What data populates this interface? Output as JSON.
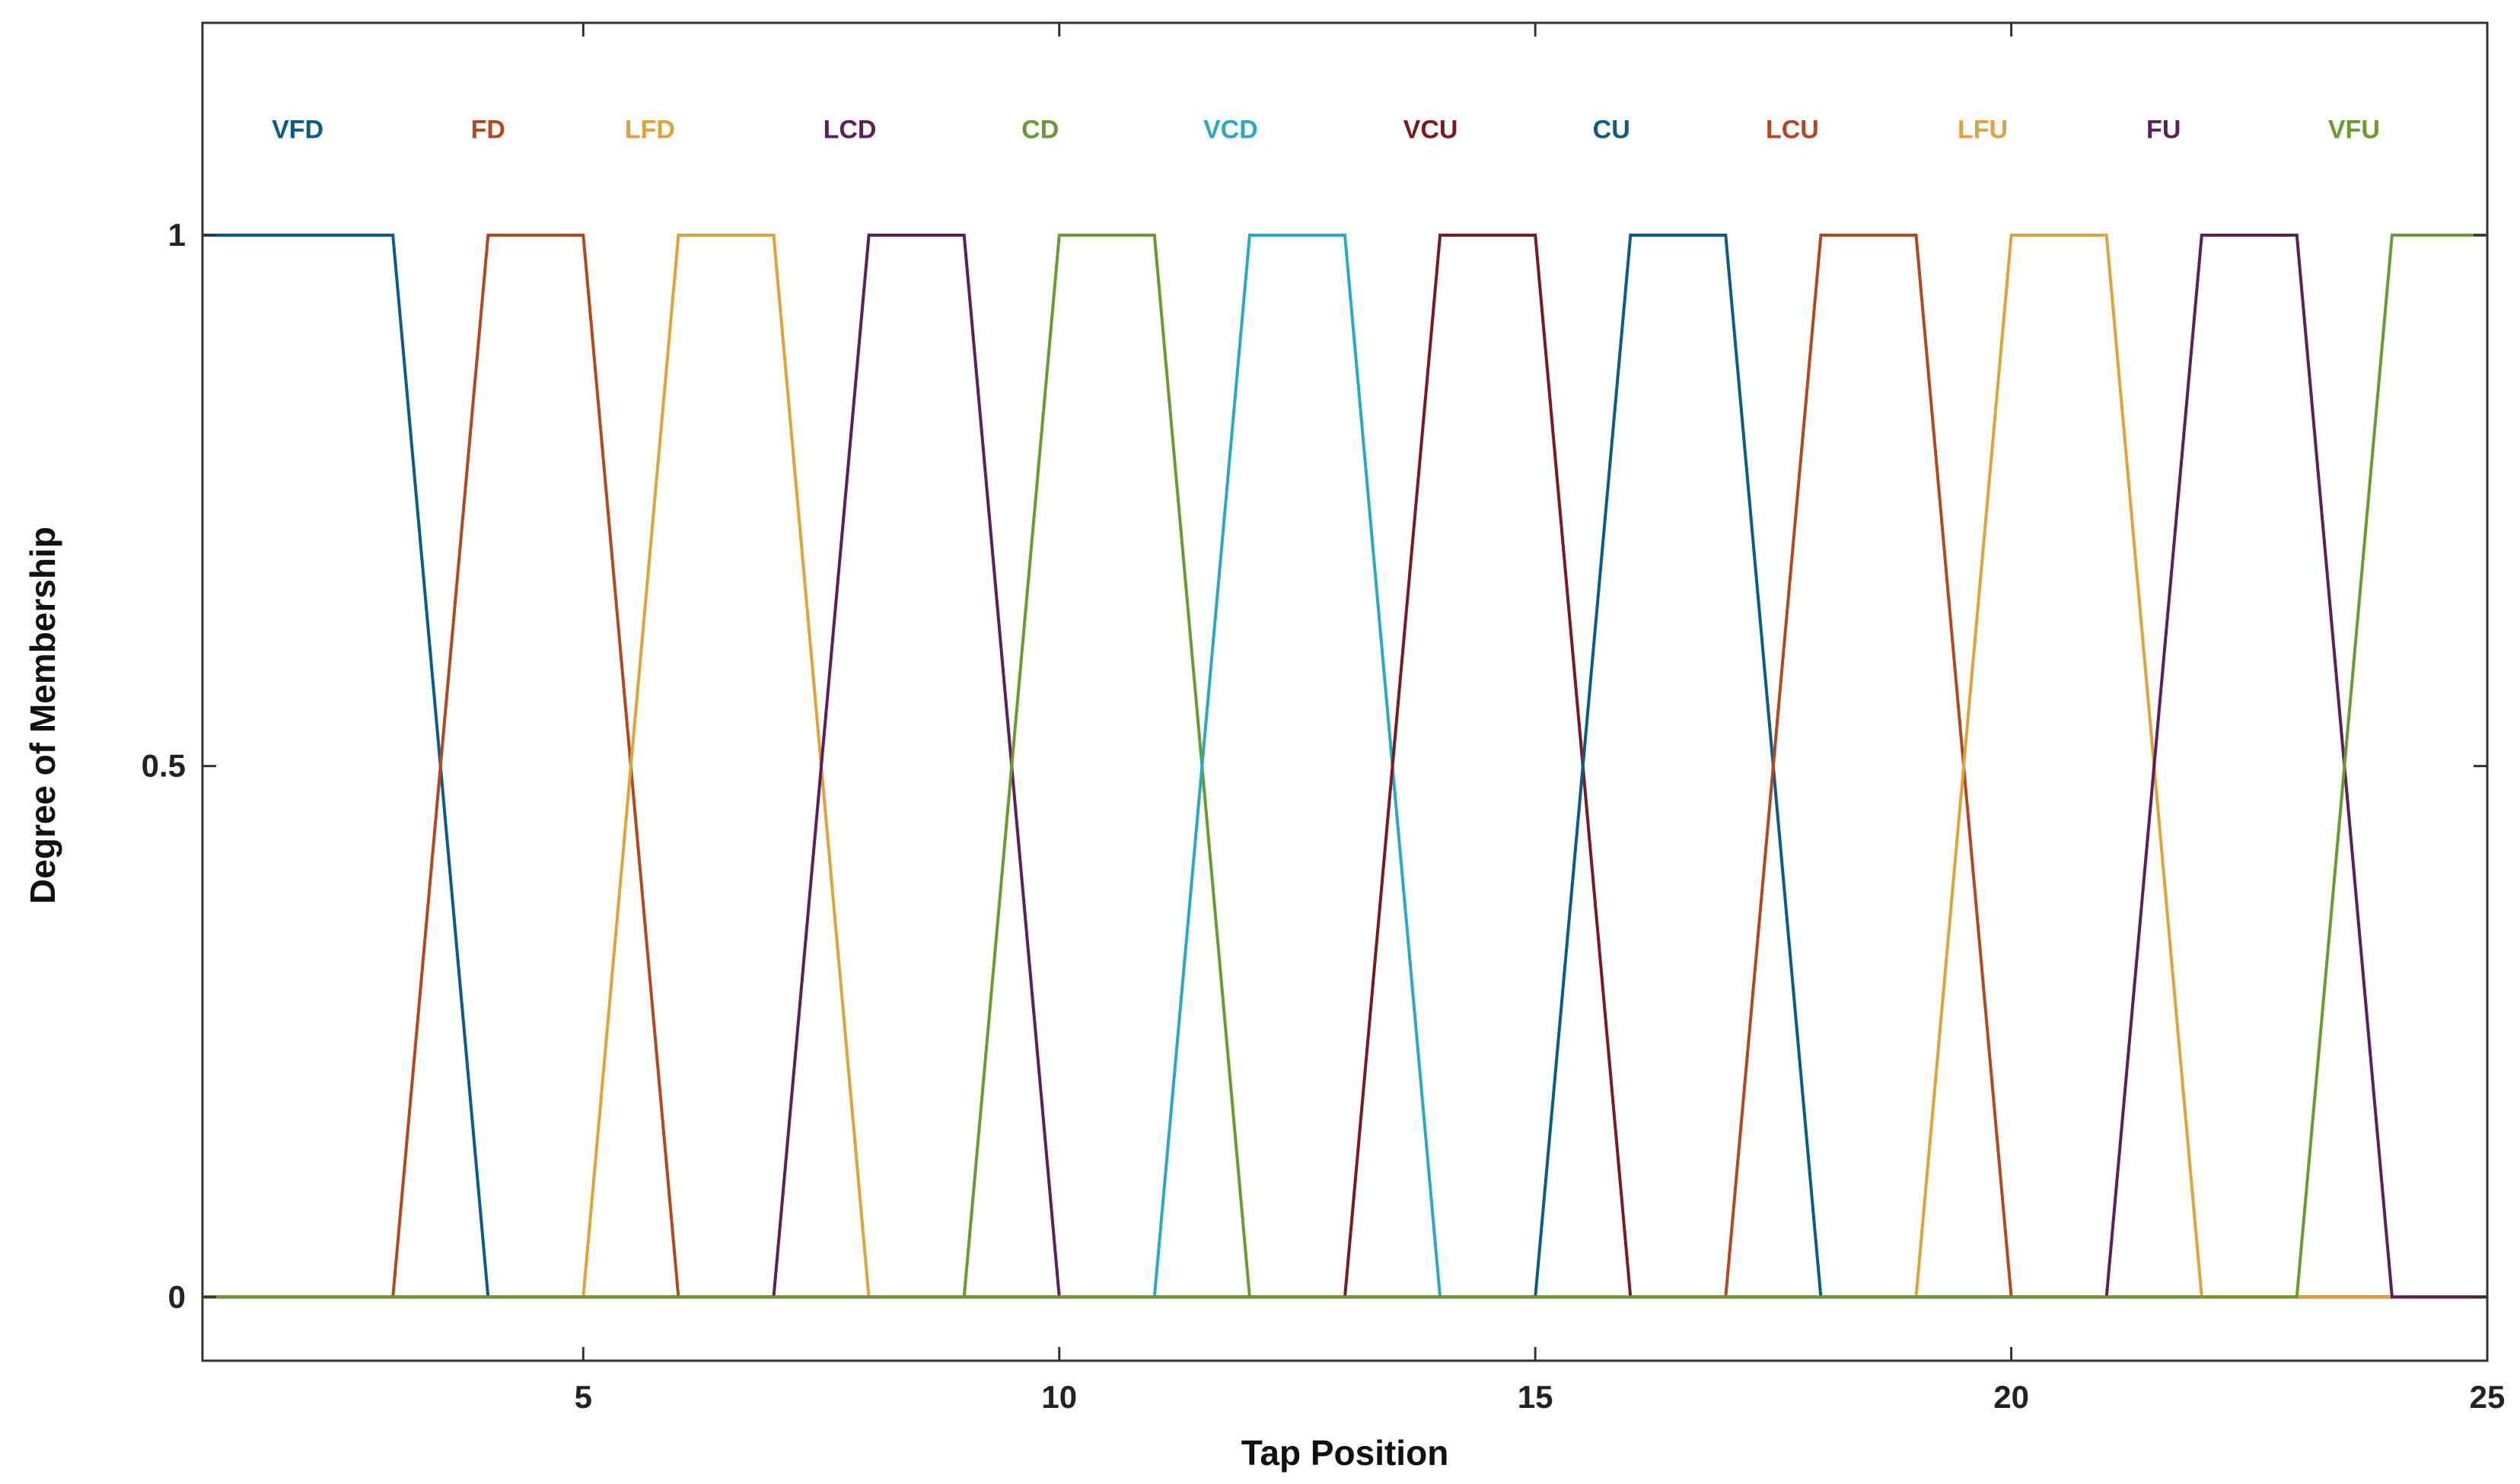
{
  "chart_data": {
    "type": "line",
    "title": "",
    "xlabel": "Tap Position",
    "ylabel": "Degree of Membership",
    "xlim": [
      1,
      25
    ],
    "ylim": [
      -0.06,
      1.2
    ],
    "xticks": [
      5,
      10,
      15,
      20,
      25
    ],
    "xtick_labels": [
      "5",
      "10",
      "15",
      "20",
      "25"
    ],
    "yticks": [
      0,
      0.5,
      1
    ],
    "ytick_labels": [
      "0",
      "0.5",
      "1"
    ],
    "grid": false,
    "label_y": 1.1,
    "series": [
      {
        "name": "VFD",
        "color": "#0b5a8a",
        "points": [
          [
            1,
            1
          ],
          [
            3,
            1
          ],
          [
            4,
            0
          ],
          [
            25,
            0
          ]
        ]
      },
      {
        "name": "FD",
        "color": "#b5471e",
        "points": [
          [
            1,
            0
          ],
          [
            3,
            0
          ],
          [
            4,
            1
          ],
          [
            5,
            1
          ],
          [
            6,
            0
          ],
          [
            25,
            0
          ]
        ]
      },
      {
        "name": "LFD",
        "color": "#e0a33a",
        "points": [
          [
            1,
            0
          ],
          [
            5,
            0
          ],
          [
            6,
            1
          ],
          [
            7,
            1
          ],
          [
            8,
            0
          ],
          [
            25,
            0
          ]
        ]
      },
      {
        "name": "LCD",
        "color": "#5a1f5c",
        "points": [
          [
            1,
            0
          ],
          [
            7,
            0
          ],
          [
            8,
            1
          ],
          [
            9,
            1
          ],
          [
            10,
            0
          ],
          [
            25,
            0
          ]
        ]
      },
      {
        "name": "CD",
        "color": "#6a9a32",
        "points": [
          [
            1,
            0
          ],
          [
            9,
            0
          ],
          [
            10,
            1
          ],
          [
            11,
            1
          ],
          [
            12,
            0
          ],
          [
            25,
            0
          ]
        ]
      },
      {
        "name": "VCD",
        "color": "#2aa8c8",
        "points": [
          [
            1,
            0
          ],
          [
            11,
            0
          ],
          [
            12,
            1
          ],
          [
            13,
            1
          ],
          [
            14,
            0
          ],
          [
            25,
            0
          ]
        ]
      },
      {
        "name": "VCU",
        "color": "#7a1a20",
        "points": [
          [
            1,
            0
          ],
          [
            13,
            0
          ],
          [
            14,
            1
          ],
          [
            15,
            1
          ],
          [
            16,
            0
          ],
          [
            25,
            0
          ]
        ]
      },
      {
        "name": "CU",
        "color": "#0b5a8a",
        "points": [
          [
            1,
            0
          ],
          [
            15,
            0
          ],
          [
            16,
            1
          ],
          [
            17,
            1
          ],
          [
            18,
            0
          ],
          [
            25,
            0
          ]
        ]
      },
      {
        "name": "LCU",
        "color": "#b5471e",
        "points": [
          [
            1,
            0
          ],
          [
            17,
            0
          ],
          [
            18,
            1
          ],
          [
            19,
            1
          ],
          [
            20,
            0
          ],
          [
            25,
            0
          ]
        ]
      },
      {
        "name": "LFU",
        "color": "#e0a33a",
        "points": [
          [
            1,
            0
          ],
          [
            19,
            0
          ],
          [
            20,
            1
          ],
          [
            21,
            1
          ],
          [
            22,
            0
          ],
          [
            25,
            0
          ]
        ]
      },
      {
        "name": "FU",
        "color": "#5a1f5c",
        "points": [
          [
            1,
            0
          ],
          [
            21,
            0
          ],
          [
            22,
            1
          ],
          [
            23,
            1
          ],
          [
            24,
            0
          ],
          [
            25,
            0
          ]
        ]
      },
      {
        "name": "VFU",
        "color": "#6a9a32",
        "points": [
          [
            1,
            0
          ],
          [
            23,
            0
          ],
          [
            24,
            1
          ],
          [
            25,
            1
          ]
        ]
      }
    ],
    "label_x": [
      2.0,
      4.0,
      5.7,
      7.8,
      9.8,
      11.8,
      13.9,
      15.8,
      17.7,
      19.7,
      21.6,
      23.6
    ]
  }
}
